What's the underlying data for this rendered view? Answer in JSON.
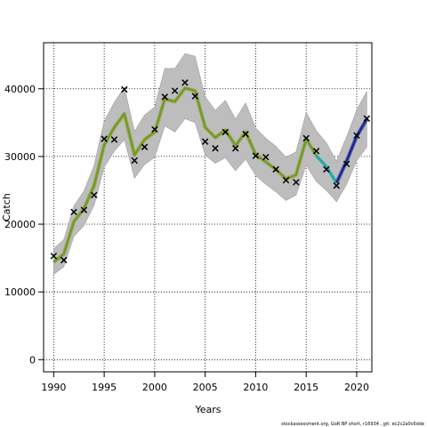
{
  "chart_data": {
    "type": "line",
    "xlabel": "Years",
    "ylabel": "Catch",
    "xlim": [
      1989,
      2021.5
    ],
    "ylim": [
      -1800,
      46800
    ],
    "x_ticks": [
      1990,
      1995,
      2000,
      2005,
      2010,
      2015,
      2020
    ],
    "y_ticks": [
      0,
      10000,
      20000,
      30000,
      40000
    ],
    "grid": true,
    "years": [
      1990,
      1991,
      1992,
      1993,
      1994,
      1995,
      1996,
      1997,
      1998,
      1999,
      2000,
      2001,
      2002,
      2003,
      2004,
      2005,
      2006,
      2007,
      2008,
      2009,
      2010,
      2011,
      2012,
      2013,
      2014,
      2015,
      2016,
      2017,
      2018,
      2019,
      2020,
      2021
    ],
    "observed": [
      15300,
      14700,
      21800,
      22100,
      24300,
      32600,
      32500,
      39900,
      29400,
      31400,
      34000,
      38800,
      39700,
      40900,
      38900,
      32200,
      31200,
      33600,
      31200,
      33300,
      30100,
      29900,
      28100,
      26500,
      26200,
      32700,
      30800,
      28100,
      25700,
      28900,
      33100,
      35600
    ],
    "fit": [
      14400,
      15600,
      20400,
      22300,
      25700,
      31700,
      34300,
      36300,
      30200,
      32500,
      33600,
      38500,
      38100,
      40100,
      39700,
      34300,
      32800,
      33900,
      31600,
      33600,
      30300,
      29200,
      28100,
      26700,
      27300,
      32600,
      30100,
      28500,
      26100,
      29300,
      33000,
      35500
    ],
    "ci_lower": [
      12600,
      13700,
      18200,
      19800,
      22800,
      28400,
      30800,
      32500,
      26800,
      28800,
      29900,
      34500,
      33600,
      35600,
      35000,
      30200,
      29000,
      29800,
      27900,
      29600,
      27200,
      25900,
      24800,
      23500,
      24300,
      28700,
      26300,
      25000,
      23300,
      25900,
      29400,
      31400
    ],
    "ci_upper": [
      16400,
      17700,
      22700,
      24900,
      28700,
      35200,
      38000,
      40200,
      33700,
      36100,
      37300,
      43000,
      43000,
      45200,
      44800,
      38800,
      36800,
      38300,
      35500,
      37900,
      34200,
      32700,
      31500,
      29900,
      30700,
      36500,
      33800,
      32000,
      29300,
      32900,
      36900,
      39600
    ],
    "series_colors": {
      "fit_early": "#6f9a2a",
      "fit_early_edge": "#a0a85a",
      "fit_mid": "#2aa198",
      "fit_mid_edge": "#4fc0d0",
      "fit_late": "#1a2a8a",
      "fit_late_edge": "#5a5ab0",
      "ci_band": "#bdbdbd",
      "observed_marker": "#000000"
    },
    "color_breaks": [
      2016,
      2018
    ]
  },
  "footer_text": "stockassessment.org, GoR BP short, r16934 , git: ec2c2a0c6dde"
}
